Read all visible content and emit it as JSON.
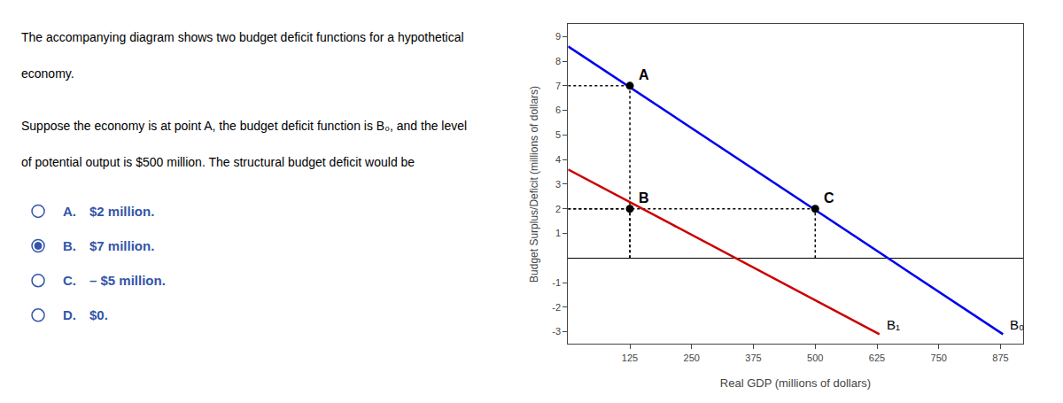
{
  "chart_data": {
    "type": "line",
    "xlabel": "Real GDP (millions of dollars)",
    "ylabel": "Budget Surplus/Deficit (millions of dollars)",
    "xlim": [
      0,
      920
    ],
    "ylim": [
      -3.5,
      9.5
    ],
    "xticks": [
      125,
      250,
      375,
      500,
      625,
      750,
      875
    ],
    "yticks": [
      -3,
      -2,
      -1,
      1,
      2,
      3,
      4,
      5,
      6,
      7,
      8,
      9
    ],
    "grid": false,
    "series": [
      {
        "name": "B₀",
        "color": "#0000EE",
        "x": [
          0,
          880
        ],
        "values": [
          8.6,
          -3.1
        ]
      },
      {
        "name": "B₁",
        "color": "#CC0000",
        "x": [
          0,
          630
        ],
        "values": [
          3.6,
          -3.1
        ]
      }
    ],
    "points": {
      "color": "#000000",
      "marker": "circle",
      "line_style": "dotted",
      "items": [
        {
          "label": "A",
          "x": 125,
          "y": 7
        },
        {
          "label": "B",
          "x": 125,
          "y": 2
        },
        {
          "label": "C",
          "x": 500,
          "y": 2
        }
      ]
    },
    "question": {
      "color": "#000000",
      "paragraphs": [
        [
          "The accompanying diagram shows two budget deficit functions for a hypothetical",
          "economy."
        ],
        [
          "Suppose the economy is at point A, the budget deficit function is B₀, and the level",
          "of potential output is $500 million. The structural budget deficit would be"
        ]
      ]
    },
    "options": {
      "color": "#3355AA",
      "items": [
        {
          "text": "A. $2 million.",
          "selected": false
        },
        {
          "text": "B. $7 million.",
          "selected": true
        },
        {
          "text": "C. – $5 million.",
          "selected": false
        },
        {
          "text": "D. $0.",
          "selected": false
        }
      ]
    }
  }
}
